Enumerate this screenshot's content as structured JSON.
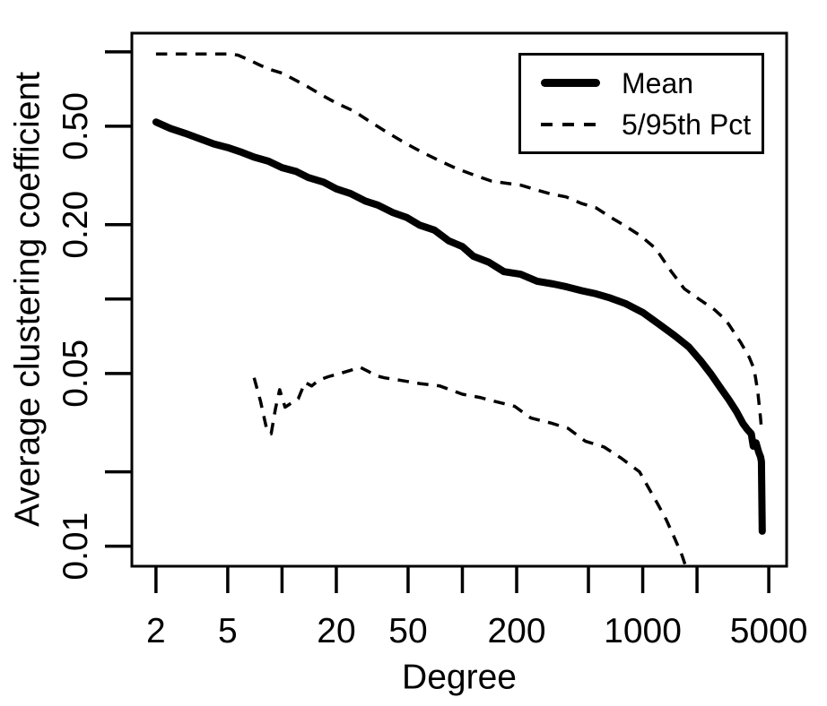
{
  "chart_data": {
    "type": "line",
    "title": "",
    "xlabel": "Degree",
    "ylabel": "Average clustering coefficient",
    "x_scale": "log",
    "y_scale": "log",
    "xlim": [
      1.47,
      6280
    ],
    "ylim": [
      0.0083,
      1.19
    ],
    "grid": false,
    "colors": {
      "foreground": "#000000",
      "background": "#ffffff"
    },
    "x_ticks": [
      {
        "v": 2,
        "label": "2"
      },
      {
        "v": 5,
        "label": "5"
      },
      {
        "v": 10,
        "label": ""
      },
      {
        "v": 20,
        "label": "20"
      },
      {
        "v": 50,
        "label": "50"
      },
      {
        "v": 100,
        "label": ""
      },
      {
        "v": 200,
        "label": "200"
      },
      {
        "v": 500,
        "label": ""
      },
      {
        "v": 1000,
        "label": "1000"
      },
      {
        "v": 2000,
        "label": ""
      },
      {
        "v": 5000,
        "label": "5000"
      }
    ],
    "y_ticks": [
      {
        "v": 0.01,
        "label": "0.01"
      },
      {
        "v": 0.02,
        "label": ""
      },
      {
        "v": 0.05,
        "label": "0.05"
      },
      {
        "v": 0.1,
        "label": ""
      },
      {
        "v": 0.2,
        "label": "0.20"
      },
      {
        "v": 0.5,
        "label": "0.50"
      },
      {
        "v": 1,
        "label": ""
      }
    ],
    "legend": {
      "position": "top-right",
      "entries": [
        {
          "label": "Mean",
          "line_style": "solid-thick"
        },
        {
          "label": "5/95th Pct",
          "line_style": "dashed"
        }
      ]
    },
    "series": [
      {
        "name": "Mean",
        "style": "solid",
        "line_width": 8,
        "points": [
          [
            2,
            0.52
          ],
          [
            2.4,
            0.49
          ],
          [
            2.9,
            0.468
          ],
          [
            3.5,
            0.445
          ],
          [
            4.2,
            0.424
          ],
          [
            5,
            0.41
          ],
          [
            6,
            0.392
          ],
          [
            7,
            0.375
          ],
          [
            8.4,
            0.361
          ],
          [
            10,
            0.34
          ],
          [
            12,
            0.328
          ],
          [
            14,
            0.31
          ],
          [
            17,
            0.297
          ],
          [
            20,
            0.279
          ],
          [
            24,
            0.267
          ],
          [
            29,
            0.249
          ],
          [
            34,
            0.24
          ],
          [
            41,
            0.224
          ],
          [
            49,
            0.214
          ],
          [
            58,
            0.199
          ],
          [
            70,
            0.19
          ],
          [
            84,
            0.172
          ],
          [
            100,
            0.163
          ],
          [
            115,
            0.149
          ],
          [
            140,
            0.141
          ],
          [
            170,
            0.129
          ],
          [
            210,
            0.126
          ],
          [
            260,
            0.118
          ],
          [
            320,
            0.115
          ],
          [
            380,
            0.112
          ],
          [
            460,
            0.108
          ],
          [
            550,
            0.105
          ],
          [
            660,
            0.101
          ],
          [
            800,
            0.096
          ],
          [
            1000,
            0.0882
          ],
          [
            1250,
            0.0785
          ],
          [
            1500,
            0.0712
          ],
          [
            1800,
            0.064
          ],
          [
            2100,
            0.0562
          ],
          [
            2400,
            0.0495
          ],
          [
            2700,
            0.0437
          ],
          [
            3000,
            0.0392
          ],
          [
            3300,
            0.0352
          ],
          [
            3600,
            0.0313
          ],
          [
            3800,
            0.0297
          ],
          [
            4000,
            0.0285
          ],
          [
            4100,
            0.0254
          ],
          [
            4250,
            0.0262
          ],
          [
            4400,
            0.024
          ],
          [
            4500,
            0.023
          ],
          [
            4550,
            0.022
          ],
          [
            4600,
            0.0115
          ]
        ]
      },
      {
        "name": "95th percentile",
        "style": "dashed",
        "line_width": 3.5,
        "points": [
          [
            2,
            0.98
          ],
          [
            3,
            0.98
          ],
          [
            4,
            0.98
          ],
          [
            5,
            0.98
          ],
          [
            5.7,
            0.97
          ],
          [
            6.5,
            0.93
          ],
          [
            7.5,
            0.885
          ],
          [
            8.5,
            0.85
          ],
          [
            10,
            0.82
          ],
          [
            12,
            0.765
          ],
          [
            14,
            0.72
          ],
          [
            16.5,
            0.67
          ],
          [
            20,
            0.62
          ],
          [
            25,
            0.576
          ],
          [
            31,
            0.52
          ],
          [
            39,
            0.468
          ],
          [
            48,
            0.428
          ],
          [
            60,
            0.392
          ],
          [
            75,
            0.362
          ],
          [
            92,
            0.338
          ],
          [
            115,
            0.318
          ],
          [
            145,
            0.3
          ],
          [
            175,
            0.294
          ],
          [
            210,
            0.289
          ],
          [
            255,
            0.277
          ],
          [
            310,
            0.266
          ],
          [
            375,
            0.259
          ],
          [
            455,
            0.244
          ],
          [
            550,
            0.234
          ],
          [
            665,
            0.214
          ],
          [
            805,
            0.197
          ],
          [
            975,
            0.18
          ],
          [
            1180,
            0.16
          ],
          [
            1430,
            0.13
          ],
          [
            1700,
            0.11
          ],
          [
            2050,
            0.1
          ],
          [
            2500,
            0.0905
          ],
          [
            2800,
            0.084
          ],
          [
            3000,
            0.079
          ],
          [
            3500,
            0.0665
          ],
          [
            3900,
            0.058
          ],
          [
            4150,
            0.052
          ],
          [
            4350,
            0.042
          ],
          [
            4500,
            0.033
          ],
          [
            4570,
            0.029
          ]
        ]
      },
      {
        "name": "5th percentile",
        "style": "dashed",
        "line_width": 3.5,
        "points": [
          [
            7,
            0.048
          ],
          [
            7.6,
            0.0385
          ],
          [
            8.2,
            0.03
          ],
          [
            8.7,
            0.0285
          ],
          [
            9.2,
            0.036
          ],
          [
            9.7,
            0.043
          ],
          [
            10.4,
            0.0365
          ],
          [
            11.3,
            0.038
          ],
          [
            12.3,
            0.0395
          ],
          [
            13.4,
            0.046
          ],
          [
            14.6,
            0.0445
          ],
          [
            16,
            0.047
          ],
          [
            18,
            0.0485
          ],
          [
            21,
            0.05
          ],
          [
            24,
            0.0515
          ],
          [
            27,
            0.053
          ],
          [
            30,
            0.051
          ],
          [
            33,
            0.049
          ],
          [
            37,
            0.048
          ],
          [
            46,
            0.0468
          ],
          [
            58,
            0.0455
          ],
          [
            75,
            0.0445
          ],
          [
            100,
            0.0412
          ],
          [
            125,
            0.04
          ],
          [
            150,
            0.0386
          ],
          [
            195,
            0.0368
          ],
          [
            240,
            0.033
          ],
          [
            310,
            0.0315
          ],
          [
            385,
            0.03
          ],
          [
            480,
            0.0266
          ],
          [
            610,
            0.0252
          ],
          [
            760,
            0.0227
          ],
          [
            960,
            0.02
          ],
          [
            1060,
            0.0176
          ],
          [
            1200,
            0.015
          ],
          [
            1350,
            0.0128
          ],
          [
            1500,
            0.0108
          ],
          [
            1650,
            0.0092
          ],
          [
            1760,
            0.008
          ]
        ]
      }
    ]
  }
}
